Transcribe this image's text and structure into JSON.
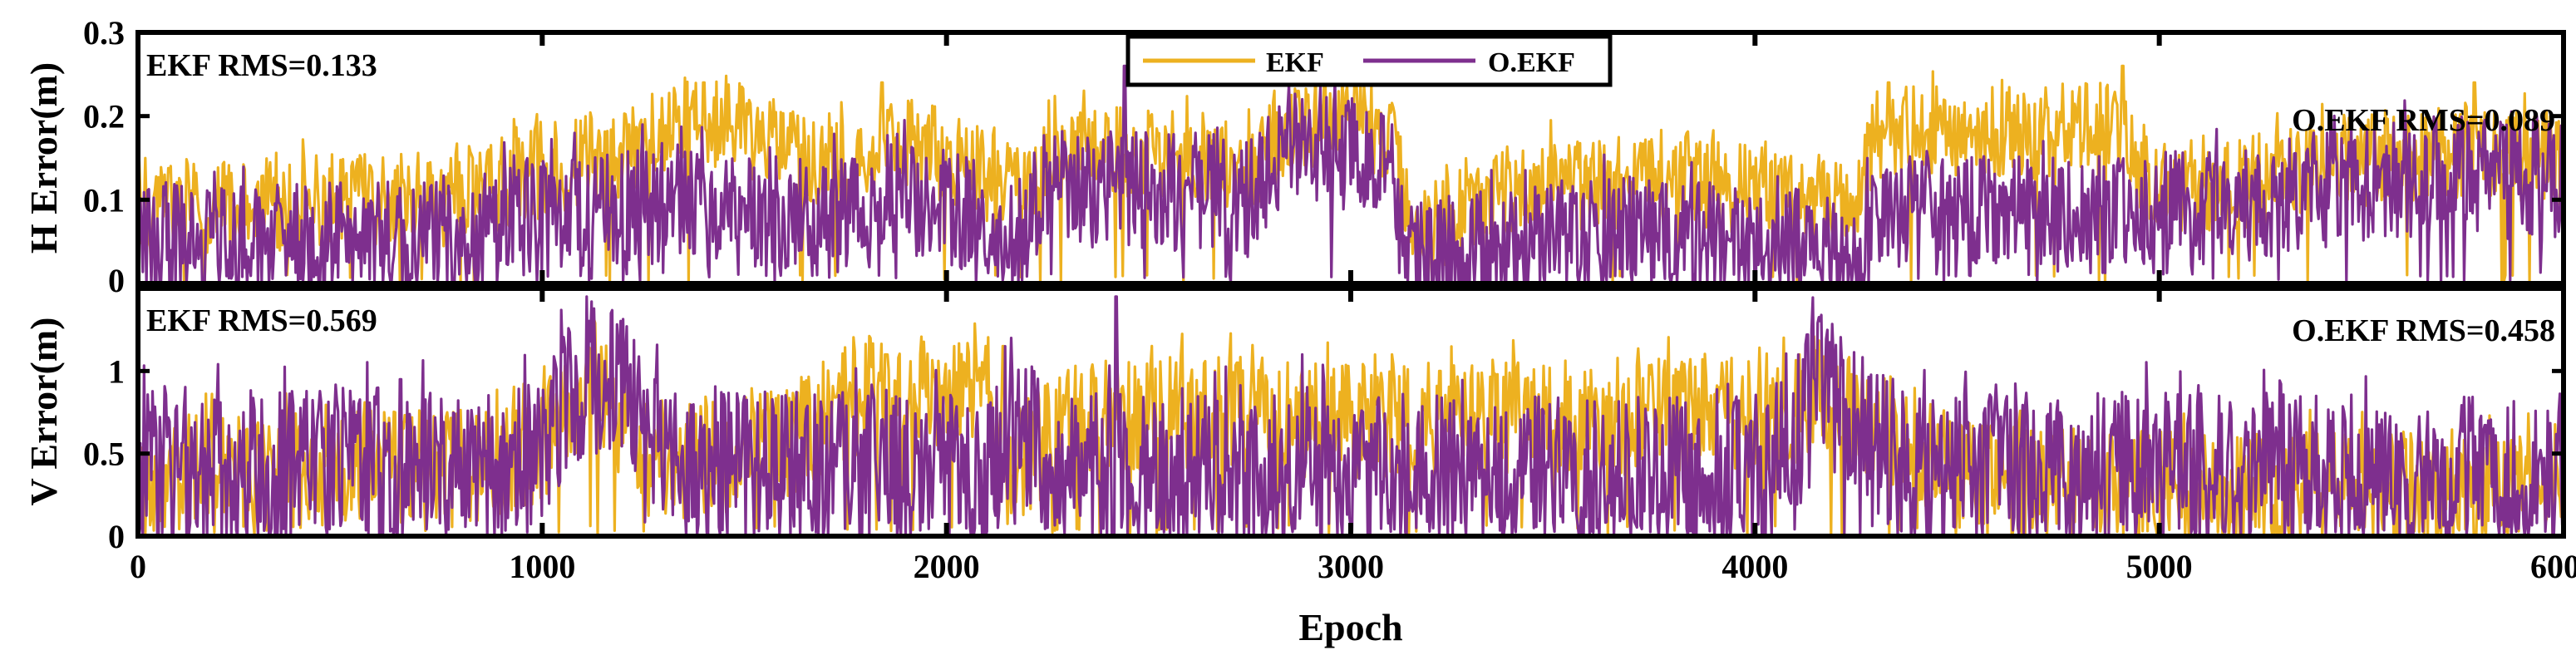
{
  "colors": {
    "ekf": "#EDB120",
    "oekf": "#7E2F8E",
    "axis": "#000000"
  },
  "legend": {
    "ekf_label": "EKF",
    "oekf_label": "O.EKF"
  },
  "chart_data": [
    {
      "type": "line",
      "id": "horizontal",
      "ylabel": "H Error(m)",
      "ylim": [
        0,
        0.3
      ],
      "yticks": [
        0,
        0.1,
        0.2,
        0.3
      ],
      "ytick_labels": [
        "0",
        "0.1",
        "0.2",
        "0.3"
      ],
      "xlim": [
        0,
        6000
      ],
      "annotations": {
        "left": "EKF RMS=0.133",
        "right": "O.EKF RMS=0.089"
      },
      "series": [
        {
          "name": "EKF",
          "profile_x": [
            0,
            200,
            500,
            800,
            900,
            1050,
            1200,
            1300,
            1400,
            1550,
            1700,
            1800,
            1900,
            2000,
            2100,
            2200,
            2250,
            2400,
            2600,
            2750,
            2850,
            2950,
            3100,
            3150,
            3300,
            3500,
            3700,
            3900,
            4000,
            4150,
            4250,
            4300,
            4500,
            4700,
            4900,
            4950,
            5100,
            5200,
            5400,
            5600,
            5800,
            5950,
            6000
          ],
          "profile_y": [
            0.1,
            0.09,
            0.1,
            0.1,
            0.12,
            0.14,
            0.16,
            0.18,
            0.19,
            0.17,
            0.14,
            0.15,
            0.17,
            0.15,
            0.13,
            0.1,
            0.15,
            0.16,
            0.16,
            0.14,
            0.19,
            0.19,
            0.18,
            0.05,
            0.1,
            0.12,
            0.12,
            0.12,
            0.11,
            0.1,
            0.08,
            0.18,
            0.18,
            0.18,
            0.19,
            0.13,
            0.11,
            0.12,
            0.14,
            0.15,
            0.16,
            0.15,
            0.15
          ],
          "amplitude": 0.035,
          "peaks": [
            [
              1400,
              0.24
            ],
            [
              1840,
              0.24
            ],
            [
              2870,
              0.23
            ],
            [
              4330,
              0.24
            ],
            [
              4910,
              0.26
            ],
            [
              5780,
              0.24
            ]
          ]
        },
        {
          "name": "O.EKF",
          "profile_x": [
            0,
            200,
            500,
            800,
            900,
            1050,
            1200,
            1350,
            1500,
            1700,
            1800,
            1950,
            2100,
            2150,
            2250,
            2400,
            2600,
            2750,
            2850,
            2950,
            3100,
            3150,
            3300,
            3500,
            3700,
            3900,
            4000,
            4150,
            4250,
            4300,
            4500,
            4700,
            4900,
            5100,
            5300,
            5500,
            5700,
            5900,
            6000
          ],
          "profile_y": [
            0.05,
            0.05,
            0.05,
            0.05,
            0.07,
            0.08,
            0.09,
            0.1,
            0.08,
            0.08,
            0.09,
            0.1,
            0.08,
            0.04,
            0.12,
            0.11,
            0.11,
            0.1,
            0.17,
            0.16,
            0.15,
            0.03,
            0.04,
            0.05,
            0.06,
            0.05,
            0.04,
            0.05,
            0.04,
            0.08,
            0.08,
            0.08,
            0.08,
            0.09,
            0.1,
            0.12,
            0.13,
            0.12,
            0.12
          ],
          "amplitude": 0.045,
          "peaks": [
            [
              2440,
              0.26
            ],
            [
              2880,
              0.22
            ],
            [
              3080,
              0.2
            ]
          ]
        }
      ]
    },
    {
      "type": "line",
      "id": "vertical",
      "ylabel": "V Error(m)",
      "ylim": [
        0,
        1.5
      ],
      "yticks": [
        0,
        0.5,
        1
      ],
      "ytick_labels": [
        "0",
        "0.5",
        "1"
      ],
      "xlim": [
        0,
        6000
      ],
      "xlabel": "Epoch",
      "xticks": [
        0,
        1000,
        2000,
        3000,
        4000,
        5000,
        6000
      ],
      "xtick_labels": [
        "0",
        "1000",
        "2000",
        "3000",
        "4000",
        "5000",
        "6000"
      ],
      "annotations": {
        "left": "EKF RMS=0.569",
        "right": "O.EKF RMS=0.458"
      },
      "series": [
        {
          "name": "EKF",
          "profile_x": [
            0,
            500,
            950,
            1050,
            1150,
            1250,
            1400,
            1600,
            1700,
            1800,
            2000,
            2100,
            2150,
            2300,
            2500,
            2700,
            2900,
            3100,
            3300,
            3500,
            3700,
            3900,
            4100,
            4150,
            4300,
            4400,
            4500,
            4700,
            5000,
            5500,
            6000
          ],
          "profile_y": [
            0.38,
            0.4,
            0.45,
            0.7,
            0.9,
            0.45,
            0.45,
            0.55,
            0.75,
            0.85,
            0.88,
            0.9,
            0.4,
            0.7,
            0.75,
            0.75,
            0.7,
            0.7,
            0.72,
            0.72,
            0.72,
            0.75,
            0.75,
            0.9,
            0.7,
            0.55,
            0.35,
            0.3,
            0.3,
            0.3,
            0.3
          ],
          "amplitude": 0.22,
          "peaks": [
            [
              1110,
              1.1
            ],
            [
              1850,
              1.1
            ],
            [
              2140,
              1.15
            ],
            [
              2720,
              1.05
            ],
            [
              3220,
              1.0
            ],
            [
              4110,
              1.1
            ]
          ]
        },
        {
          "name": "O.EKF",
          "profile_x": [
            0,
            500,
            900,
            1000,
            1100,
            1200,
            1300,
            1500,
            2000,
            2100,
            2150,
            2300,
            2500,
            2800,
            3000,
            3300,
            3600,
            4000,
            4100,
            4150,
            4250,
            4400,
            4500,
            5000,
            5500,
            6000
          ],
          "profile_y": [
            0.4,
            0.42,
            0.42,
            0.5,
            0.95,
            0.9,
            0.45,
            0.42,
            0.4,
            0.3,
            0.7,
            0.4,
            0.38,
            0.38,
            0.4,
            0.38,
            0.38,
            0.38,
            0.5,
            0.9,
            0.7,
            0.35,
            0.4,
            0.4,
            0.38,
            0.35
          ],
          "amplitude": 0.3,
          "peaks": [
            [
              650,
              0.95
            ],
            [
              1110,
              1.45
            ],
            [
              1170,
              1.35
            ],
            [
              2160,
              1.2
            ],
            [
              2420,
              1.45
            ],
            [
              2880,
              1.1
            ],
            [
              4130,
              1.22
            ]
          ]
        }
      ]
    }
  ]
}
